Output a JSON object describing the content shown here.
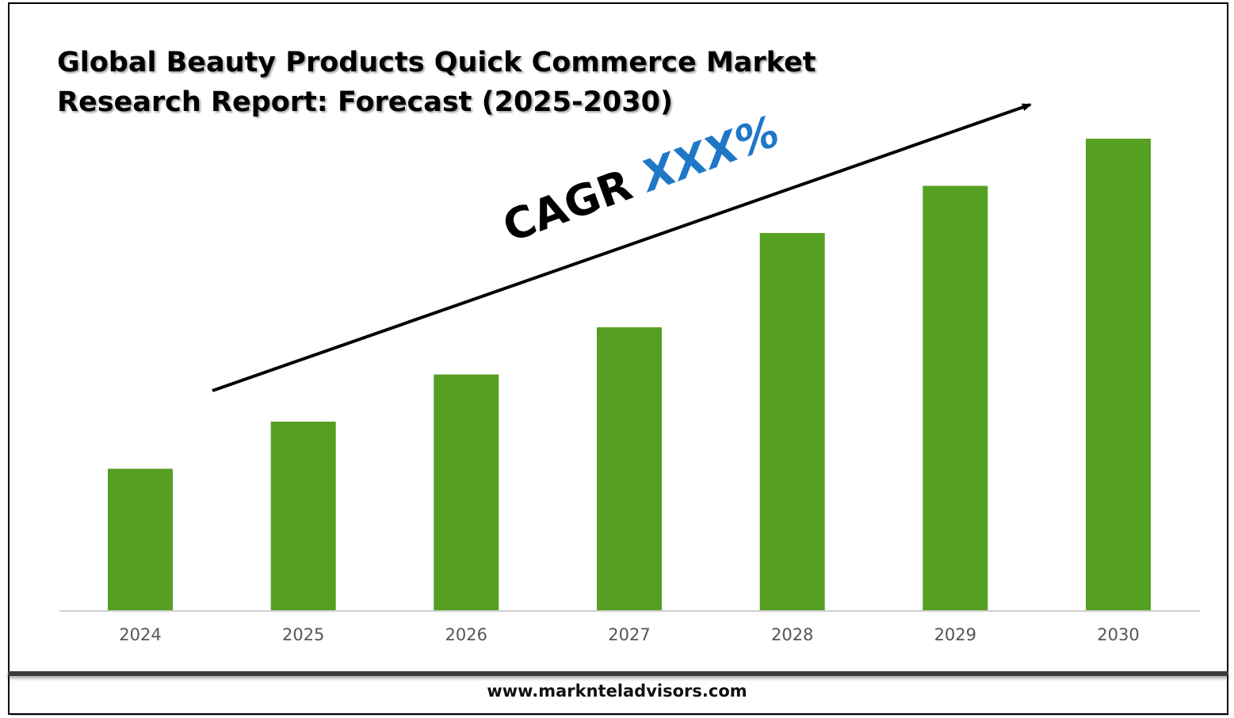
{
  "chart_data": {
    "type": "bar",
    "title": "Global Beauty Products Quick Commerce Market\nResearch Report: Forecast (2025-2030)",
    "categories": [
      "2024",
      "2025",
      "2026",
      "2027",
      "2028",
      "2029",
      "2030"
    ],
    "values": [
      30,
      40,
      50,
      60,
      80,
      90,
      100
    ],
    "ylim": [
      0,
      100
    ],
    "xlabel": "",
    "ylabel": "",
    "grid": false,
    "annotation": {
      "label": "CAGR",
      "value": "XXX%"
    },
    "bar_color": "#55a022",
    "annotation_value_color": "#1f77c8"
  },
  "footer": {
    "website": "www.marknteladvisors.com"
  }
}
